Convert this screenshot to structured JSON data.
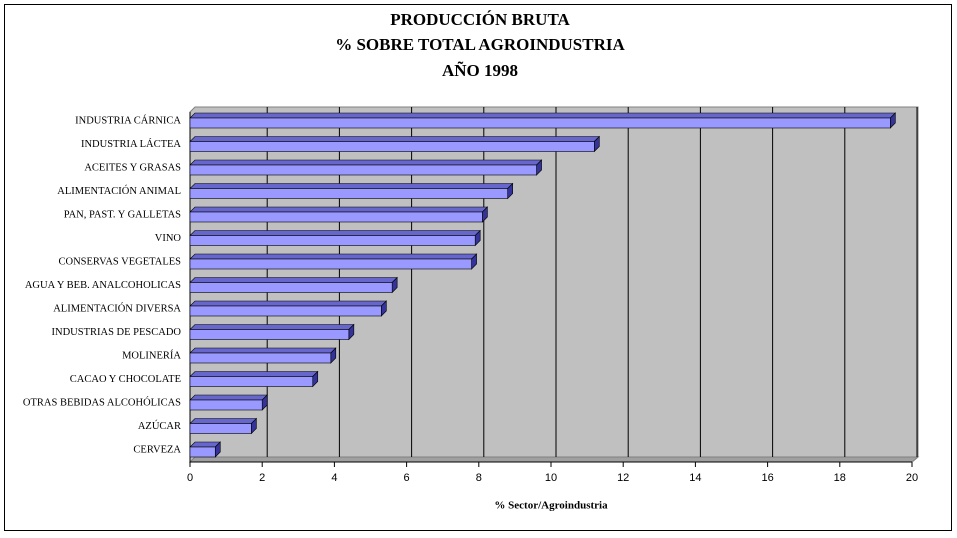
{
  "chart_data": {
    "type": "bar3d",
    "title": [
      "PRODUCCIÓN BRUTA",
      "% SOBRE TOTAL AGROINDUSTRIA",
      "AÑO 1998"
    ],
    "x_label": "% Sector/Agroindustria",
    "categories": [
      "INDUSTRIA CÁRNICA",
      "INDUSTRIA LÁCTEA",
      "ACEITES Y GRASAS",
      "ALIMENTACIÓN ANIMAL",
      "PAN, PAST. Y GALLETAS",
      "VINO",
      "CONSERVAS VEGETALES",
      "AGUA Y BEB. ANALCOHOLICAS",
      "ALIMENTACIÓN DIVERSA",
      "INDUSTRIAS DE PESCADO",
      "MOLINERÍA",
      "CACAO Y CHOCOLATE",
      "OTRAS BEBIDAS ALCOHÓLICAS",
      "AZÚCAR",
      "CERVEZA"
    ],
    "values": [
      19.4,
      11.2,
      9.6,
      8.8,
      8.1,
      7.9,
      7.8,
      5.6,
      5.3,
      4.4,
      3.9,
      3.4,
      2.0,
      1.7,
      0.7
    ],
    "color": "#9999ff",
    "xlim": [
      0,
      20
    ],
    "xticks": [
      0,
      2,
      4,
      6,
      8,
      10,
      12,
      14,
      16,
      18,
      20
    ],
    "grid": true
  }
}
